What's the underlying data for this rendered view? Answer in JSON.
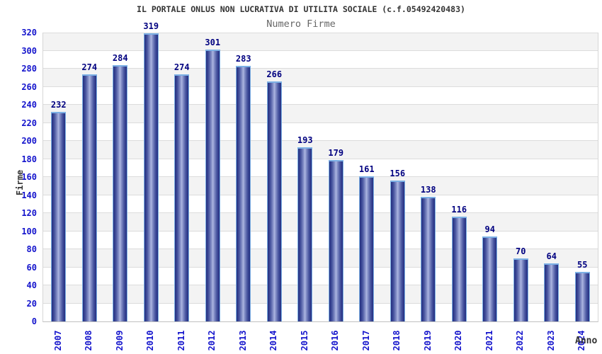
{
  "header": {
    "title": "IL PORTALE ONLUS NON LUCRATIVA DI UTILITA SOCIALE (c.f.05492420483)",
    "subtitle": "Numero Firme"
  },
  "chart_data": {
    "type": "bar",
    "title": "Numero Firme",
    "categories": [
      "2007",
      "2008",
      "2009",
      "2010",
      "2011",
      "2012",
      "2013",
      "2014",
      "2015",
      "2016",
      "2017",
      "2018",
      "2019",
      "2020",
      "2021",
      "2022",
      "2023",
      "2024"
    ],
    "values": [
      232,
      274,
      284,
      319,
      274,
      301,
      283,
      266,
      193,
      179,
      161,
      156,
      138,
      116,
      94,
      70,
      64,
      55
    ],
    "xlabel": "Anno",
    "ylabel": "Firme",
    "ylim": [
      0,
      320
    ],
    "ytick_step": 20,
    "grid": "horizontal-bands",
    "legend": "none",
    "colors": {
      "bar_edge": "#26317f",
      "bar_center": "#aeb7e2",
      "bar_outline": "#7cb0e5",
      "value_label": "#000080",
      "tick_label": "#1414cc",
      "band_gray": "#f3f3f3",
      "gridline": "#dcdcdc",
      "title": "#333333",
      "subtitle": "#666666"
    }
  }
}
